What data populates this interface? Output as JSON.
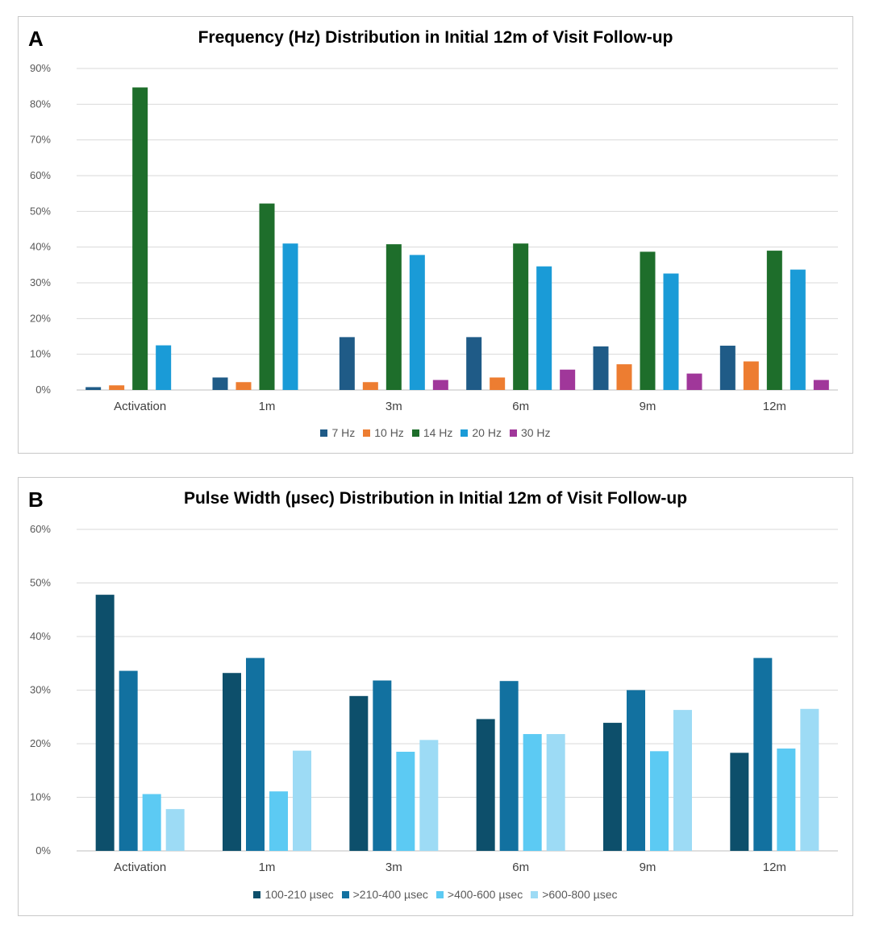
{
  "chart_data": [
    {
      "type": "bar",
      "panel_label": "A",
      "title": "Frequency (Hz) Distribution in Initial 12m of Visit Follow-up",
      "categories": [
        "Activation",
        "1m",
        "3m",
        "6m",
        "9m",
        "12m"
      ],
      "ylim": [
        0,
        90
      ],
      "yticks": [
        0,
        10,
        20,
        30,
        40,
        50,
        60,
        70,
        80,
        90
      ],
      "ytick_labels": [
        "0%",
        "10%",
        "20%",
        "30%",
        "40%",
        "50%",
        "60%",
        "70%",
        "80%",
        "90%"
      ],
      "grid": true,
      "legend_position": "bottom",
      "series": [
        {
          "name": "7 Hz",
          "color": "#1f5b87",
          "values": [
            0.8,
            3.5,
            14.8,
            14.8,
            12.2,
            12.4
          ]
        },
        {
          "name": "10 Hz",
          "color": "#ed7d31",
          "values": [
            1.3,
            2.2,
            2.2,
            3.5,
            7.2,
            8.0
          ]
        },
        {
          "name": "14 Hz",
          "color": "#1e6e2b",
          "values": [
            84.7,
            52.2,
            40.8,
            41.0,
            38.7,
            39.0
          ]
        },
        {
          "name": "20 Hz",
          "color": "#1a9bd7",
          "values": [
            12.5,
            41.0,
            37.8,
            34.6,
            32.6,
            33.7
          ]
        },
        {
          "name": "30 Hz",
          "color": "#a0379a",
          "values": [
            0.0,
            0.0,
            2.8,
            5.7,
            4.6,
            2.8
          ]
        }
      ]
    },
    {
      "type": "bar",
      "panel_label": "B",
      "title": "Pulse Width (µsec) Distribution in Initial 12m of Visit Follow-up",
      "categories": [
        "Activation",
        "1m",
        "3m",
        "6m",
        "9m",
        "12m"
      ],
      "ylim": [
        0,
        60
      ],
      "yticks": [
        0,
        10,
        20,
        30,
        40,
        50,
        60
      ],
      "ytick_labels": [
        "0%",
        "10%",
        "20%",
        "30%",
        "40%",
        "50%",
        "60%"
      ],
      "grid": true,
      "legend_position": "bottom",
      "series": [
        {
          "name": "100-210 µsec",
          "color": "#0d4f6b",
          "values": [
            47.8,
            33.2,
            28.9,
            24.6,
            23.9,
            18.3
          ]
        },
        {
          "name": ">210-400 µsec",
          "color": "#1271a0",
          "values": [
            33.6,
            36.0,
            31.8,
            31.7,
            30.0,
            36.0
          ]
        },
        {
          "name": ">400-600 µsec",
          "color": "#5ccaf3",
          "values": [
            10.6,
            11.1,
            18.5,
            21.8,
            18.6,
            19.1
          ]
        },
        {
          "name": ">600-800 µsec",
          "color": "#9ddbf5",
          "values": [
            7.8,
            18.7,
            20.7,
            21.8,
            26.3,
            26.5
          ]
        }
      ]
    }
  ]
}
